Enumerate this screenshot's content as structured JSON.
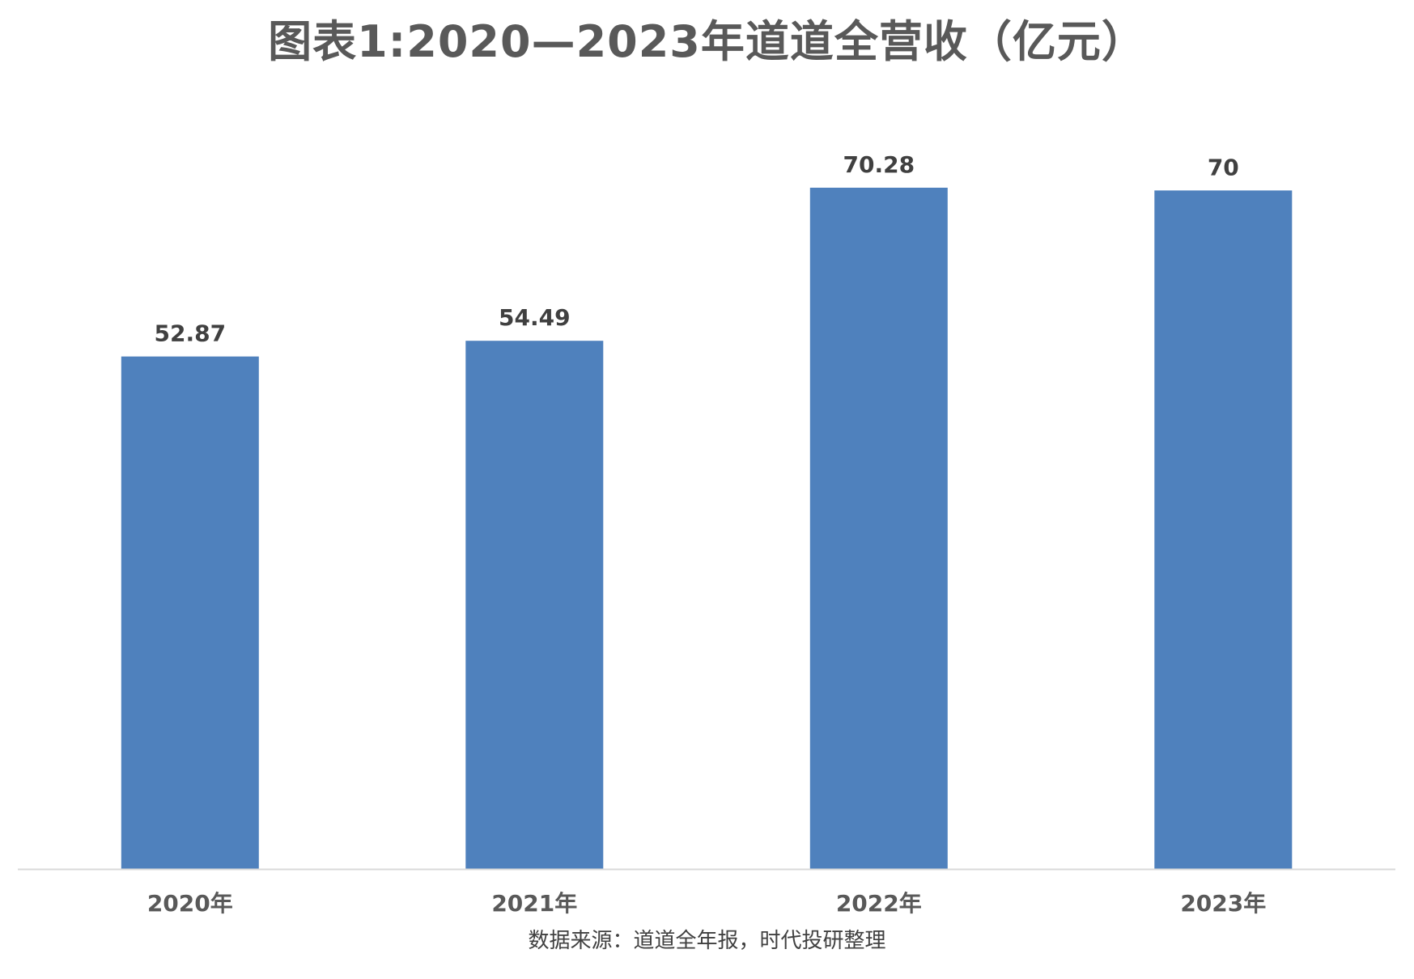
{
  "chart_data": {
    "type": "bar",
    "title": "图表1:2020—2023年道道全营收（亿元）",
    "categories": [
      "2020年",
      "2021年",
      "2022年",
      "2023年"
    ],
    "values": [
      52.87,
      54.49,
      70.28,
      70
    ],
    "value_labels": [
      "52.87",
      "54.49",
      "70.28",
      "70"
    ],
    "xlabel": "",
    "ylabel": "",
    "ylim": [
      0,
      70.28
    ],
    "grid": false,
    "legend": "none",
    "series_color": "#4f81bd"
  },
  "footer": {
    "source": "数据来源：道道全年报，时代投研整理"
  }
}
